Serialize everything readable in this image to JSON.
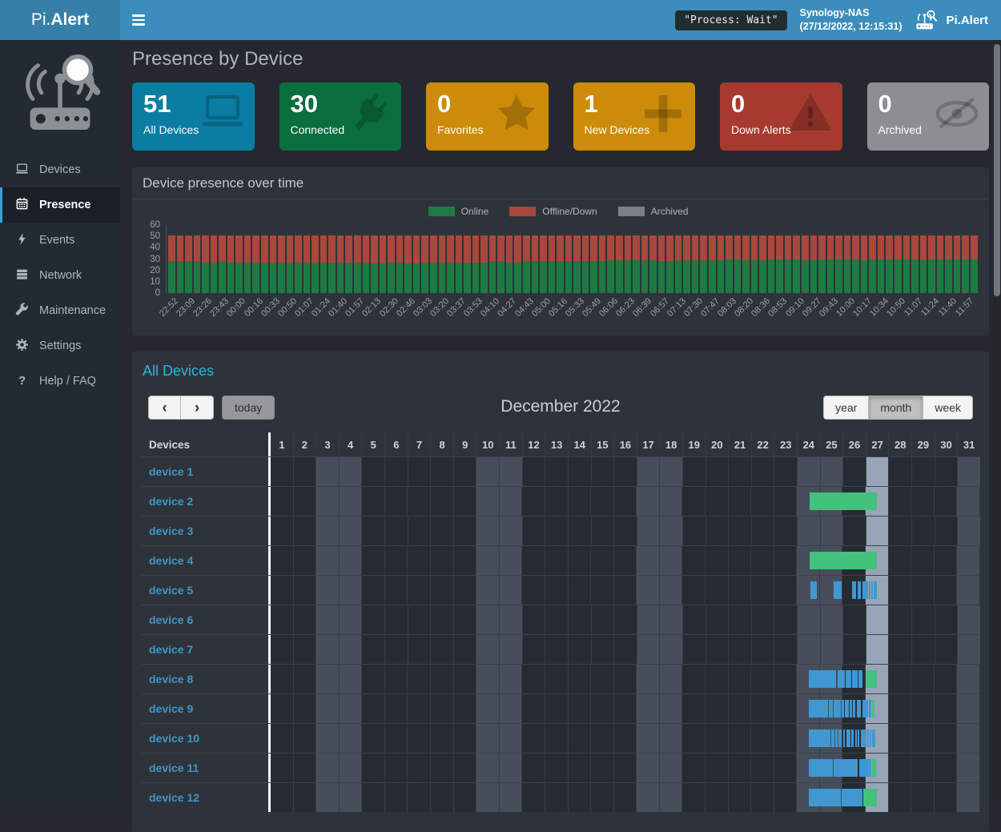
{
  "navbar": {
    "logo_prefix": "Pi.",
    "logo_bold": "Alert",
    "process_status": "\"Process: Wait\"",
    "host_name": "Synology-NAS",
    "timestamp": "(27/12/2022, 12:15:31)",
    "brand": "Pi.Alert"
  },
  "sidebar": {
    "items": [
      {
        "label": "Devices",
        "icon": "laptop-icon",
        "active": false
      },
      {
        "label": "Presence",
        "icon": "calendar-icon",
        "active": true
      },
      {
        "label": "Events",
        "icon": "bolt-icon",
        "active": false
      },
      {
        "label": "Network",
        "icon": "network-icon",
        "active": false
      },
      {
        "label": "Maintenance",
        "icon": "wrench-icon",
        "active": false
      },
      {
        "label": "Settings",
        "icon": "gear-icon",
        "active": false
      },
      {
        "label": "Help / FAQ",
        "icon": "question-icon",
        "active": false
      }
    ]
  },
  "page": {
    "title": "Presence by Device"
  },
  "info_boxes": [
    {
      "value": "51",
      "label": "All Devices",
      "bg": "#0b7da3",
      "icon": "laptop-icon"
    },
    {
      "value": "30",
      "label": "Connected",
      "bg": "#0a6e3e",
      "icon": "plug-icon"
    },
    {
      "value": "0",
      "label": "Favorites",
      "bg": "#cc8b0a",
      "icon": "star-icon"
    },
    {
      "value": "1",
      "label": "New Devices",
      "bg": "#cc8b0a",
      "icon": "plus-icon"
    },
    {
      "value": "0",
      "label": "Down Alerts",
      "bg": "#a73a2e",
      "icon": "warning-icon"
    },
    {
      "value": "0",
      "label": "Archived",
      "bg": "#8b8f94",
      "icon": "eye-slash-icon"
    }
  ],
  "chart_data": {
    "type": "bar",
    "stacked": true,
    "title": "Device presence over time",
    "xlabel": "",
    "ylabel": "",
    "ylim": [
      0,
      60
    ],
    "yticks": [
      0,
      10,
      20,
      30,
      40,
      50,
      60
    ],
    "legend_position": "top-center",
    "total_devices": 51,
    "bars_per_tick": 2,
    "x_tick_labels": [
      "22:52",
      "23:09",
      "23:26",
      "23:43",
      "00:00",
      "00:16",
      "00:33",
      "00:50",
      "01:07",
      "01:24",
      "01:40",
      "01:57",
      "02:13",
      "02:30",
      "02:46",
      "03:03",
      "03:20",
      "03:37",
      "03:53",
      "04:10",
      "04:27",
      "04:43",
      "05:00",
      "05:16",
      "05:33",
      "05:49",
      "06:06",
      "06:23",
      "06:39",
      "06:57",
      "07:13",
      "07:30",
      "07:47",
      "08:03",
      "08:20",
      "08:36",
      "08:53",
      "09:10",
      "09:27",
      "09:43",
      "10:00",
      "10:17",
      "10:34",
      "10:50",
      "11:07",
      "11:24",
      "11:40",
      "11:57"
    ],
    "series": [
      {
        "name": "Online",
        "color": "#1e7a43",
        "values": [
          28,
          28,
          28,
          28,
          27,
          27,
          28,
          27,
          27,
          27,
          27,
          27,
          27,
          27,
          27,
          27,
          27,
          27,
          27,
          27,
          27,
          27,
          27,
          27,
          26,
          26,
          27,
          27,
          26,
          26,
          27,
          27,
          27,
          27,
          27,
          27,
          27,
          27,
          28,
          28,
          27,
          27,
          28,
          28,
          28,
          28,
          28,
          28,
          28,
          28,
          28,
          28,
          29,
          29,
          29,
          29,
          29,
          29,
          28,
          28,
          29,
          29,
          29,
          29,
          29,
          29,
          30,
          30,
          29,
          29,
          29,
          30,
          30,
          30,
          30,
          29,
          29,
          30,
          30,
          30,
          30,
          30,
          29,
          30,
          30,
          30,
          30,
          30,
          30,
          29,
          30,
          30,
          30,
          30,
          30,
          30
        ]
      },
      {
        "name": "Offline/Down",
        "color": "#a8473c",
        "values": [
          23,
          23,
          23,
          23,
          24,
          24,
          23,
          24,
          24,
          24,
          24,
          24,
          24,
          24,
          24,
          24,
          24,
          24,
          24,
          24,
          24,
          24,
          24,
          24,
          25,
          25,
          24,
          24,
          25,
          25,
          24,
          24,
          24,
          24,
          24,
          24,
          24,
          24,
          23,
          23,
          24,
          24,
          23,
          23,
          23,
          23,
          23,
          23,
          23,
          23,
          23,
          23,
          22,
          22,
          22,
          22,
          22,
          22,
          23,
          23,
          22,
          22,
          22,
          22,
          22,
          22,
          21,
          21,
          22,
          22,
          22,
          21,
          21,
          21,
          21,
          22,
          22,
          21,
          21,
          21,
          21,
          21,
          22,
          21,
          21,
          21,
          21,
          21,
          21,
          22,
          21,
          21,
          21,
          21,
          21,
          21
        ]
      },
      {
        "name": "Archived",
        "color": "#7b7f85",
        "values": [
          0,
          0,
          0,
          0,
          0,
          0,
          0,
          0,
          0,
          0,
          0,
          0,
          0,
          0,
          0,
          0,
          0,
          0,
          0,
          0,
          0,
          0,
          0,
          0,
          0,
          0,
          0,
          0,
          0,
          0,
          0,
          0,
          0,
          0,
          0,
          0,
          0,
          0,
          0,
          0,
          0,
          0,
          0,
          0,
          0,
          0,
          0,
          0,
          0,
          0,
          0,
          0,
          0,
          0,
          0,
          0,
          0,
          0,
          0,
          0,
          0,
          0,
          0,
          0,
          0,
          0,
          0,
          0,
          0,
          0,
          0,
          0,
          0,
          0,
          0,
          0,
          0,
          0,
          0,
          0,
          0,
          0,
          0,
          0,
          0,
          0,
          0,
          0,
          0,
          0,
          0,
          0,
          0,
          0,
          0,
          0
        ]
      }
    ]
  },
  "calendar": {
    "title": "All Devices",
    "prev_label": "‹",
    "next_label": "›",
    "today_label": "today",
    "month_title": "December 2022",
    "views": [
      "year",
      "month",
      "week"
    ],
    "active_view": "month",
    "devices_header": "Devices",
    "day_count": 31,
    "weekend_days": [
      3,
      4,
      10,
      11,
      17,
      18,
      24,
      25,
      31
    ],
    "today_day": 27,
    "bar_colors": {
      "blue": "#4197d2",
      "green": "#43c17d"
    },
    "devices": [
      {
        "name": "device 1",
        "segments": []
      },
      {
        "name": "device 2",
        "segments": [
          {
            "start": 23.55,
            "end": 26.5,
            "color": "green"
          }
        ]
      },
      {
        "name": "device 3",
        "segments": []
      },
      {
        "name": "device 4",
        "segments": [
          {
            "start": 23.55,
            "end": 26.5,
            "color": "green"
          }
        ]
      },
      {
        "name": "device 5",
        "segments": [
          {
            "start": 23.58,
            "end": 23.85,
            "color": "blue"
          },
          {
            "start": 24.6,
            "end": 24.95,
            "color": "blue"
          },
          {
            "start": 25.4,
            "end": 25.58,
            "color": "blue"
          },
          {
            "start": 25.63,
            "end": 25.77,
            "color": "blue"
          },
          {
            "start": 25.85,
            "end": 26.1,
            "color": "blue"
          },
          {
            "start": 26.13,
            "end": 26.21,
            "color": "blue"
          },
          {
            "start": 26.24,
            "end": 26.31,
            "color": "blue"
          },
          {
            "start": 26.34,
            "end": 26.48,
            "color": "blue"
          }
        ]
      },
      {
        "name": "device 6",
        "segments": []
      },
      {
        "name": "device 7",
        "segments": []
      },
      {
        "name": "device 8",
        "segments": [
          {
            "start": 23.5,
            "end": 24.7,
            "color": "blue"
          },
          {
            "start": 24.76,
            "end": 25.09,
            "color": "blue"
          },
          {
            "start": 25.13,
            "end": 25.37,
            "color": "blue"
          },
          {
            "start": 25.41,
            "end": 25.64,
            "color": "blue"
          },
          {
            "start": 25.67,
            "end": 25.87,
            "color": "blue"
          },
          {
            "start": 25.99,
            "end": 26.48,
            "color": "green"
          }
        ]
      },
      {
        "name": "device 9",
        "segments": [
          {
            "start": 23.5,
            "end": 24.35,
            "color": "blue"
          },
          {
            "start": 24.4,
            "end": 24.55,
            "color": "blue"
          },
          {
            "start": 24.6,
            "end": 24.9,
            "color": "blue"
          },
          {
            "start": 24.95,
            "end": 25.05,
            "color": "blue"
          },
          {
            "start": 25.1,
            "end": 25.25,
            "color": "blue"
          },
          {
            "start": 25.3,
            "end": 25.4,
            "color": "blue"
          },
          {
            "start": 25.45,
            "end": 25.55,
            "color": "blue"
          },
          {
            "start": 25.6,
            "end": 25.8,
            "color": "blue"
          },
          {
            "start": 25.85,
            "end": 26.1,
            "color": "blue"
          },
          {
            "start": 26.15,
            "end": 26.25,
            "color": "blue"
          },
          {
            "start": 26.28,
            "end": 26.38,
            "color": "green"
          }
        ]
      },
      {
        "name": "device 10",
        "segments": [
          {
            "start": 23.5,
            "end": 24.45,
            "color": "blue"
          },
          {
            "start": 24.5,
            "end": 24.62,
            "color": "blue"
          },
          {
            "start": 24.67,
            "end": 24.78,
            "color": "blue"
          },
          {
            "start": 24.82,
            "end": 24.95,
            "color": "blue"
          },
          {
            "start": 25.0,
            "end": 25.1,
            "color": "blue"
          },
          {
            "start": 25.14,
            "end": 25.32,
            "color": "blue"
          },
          {
            "start": 25.37,
            "end": 25.48,
            "color": "blue"
          },
          {
            "start": 25.53,
            "end": 25.6,
            "color": "blue"
          },
          {
            "start": 25.65,
            "end": 25.72,
            "color": "blue"
          },
          {
            "start": 25.77,
            "end": 26.02,
            "color": "blue"
          },
          {
            "start": 26.07,
            "end": 26.14,
            "color": "blue"
          },
          {
            "start": 26.18,
            "end": 26.23,
            "color": "blue"
          },
          {
            "start": 26.27,
            "end": 26.4,
            "color": "blue"
          }
        ]
      },
      {
        "name": "device 11",
        "segments": [
          {
            "start": 23.5,
            "end": 24.55,
            "color": "blue"
          },
          {
            "start": 24.6,
            "end": 25.65,
            "color": "blue"
          },
          {
            "start": 25.7,
            "end": 26.25,
            "color": "blue"
          },
          {
            "start": 26.28,
            "end": 26.45,
            "color": "green"
          }
        ]
      },
      {
        "name": "device 12",
        "segments": [
          {
            "start": 23.5,
            "end": 24.9,
            "color": "blue"
          },
          {
            "start": 24.93,
            "end": 25.87,
            "color": "blue"
          },
          {
            "start": 25.9,
            "end": 26.48,
            "color": "green"
          }
        ]
      }
    ]
  }
}
